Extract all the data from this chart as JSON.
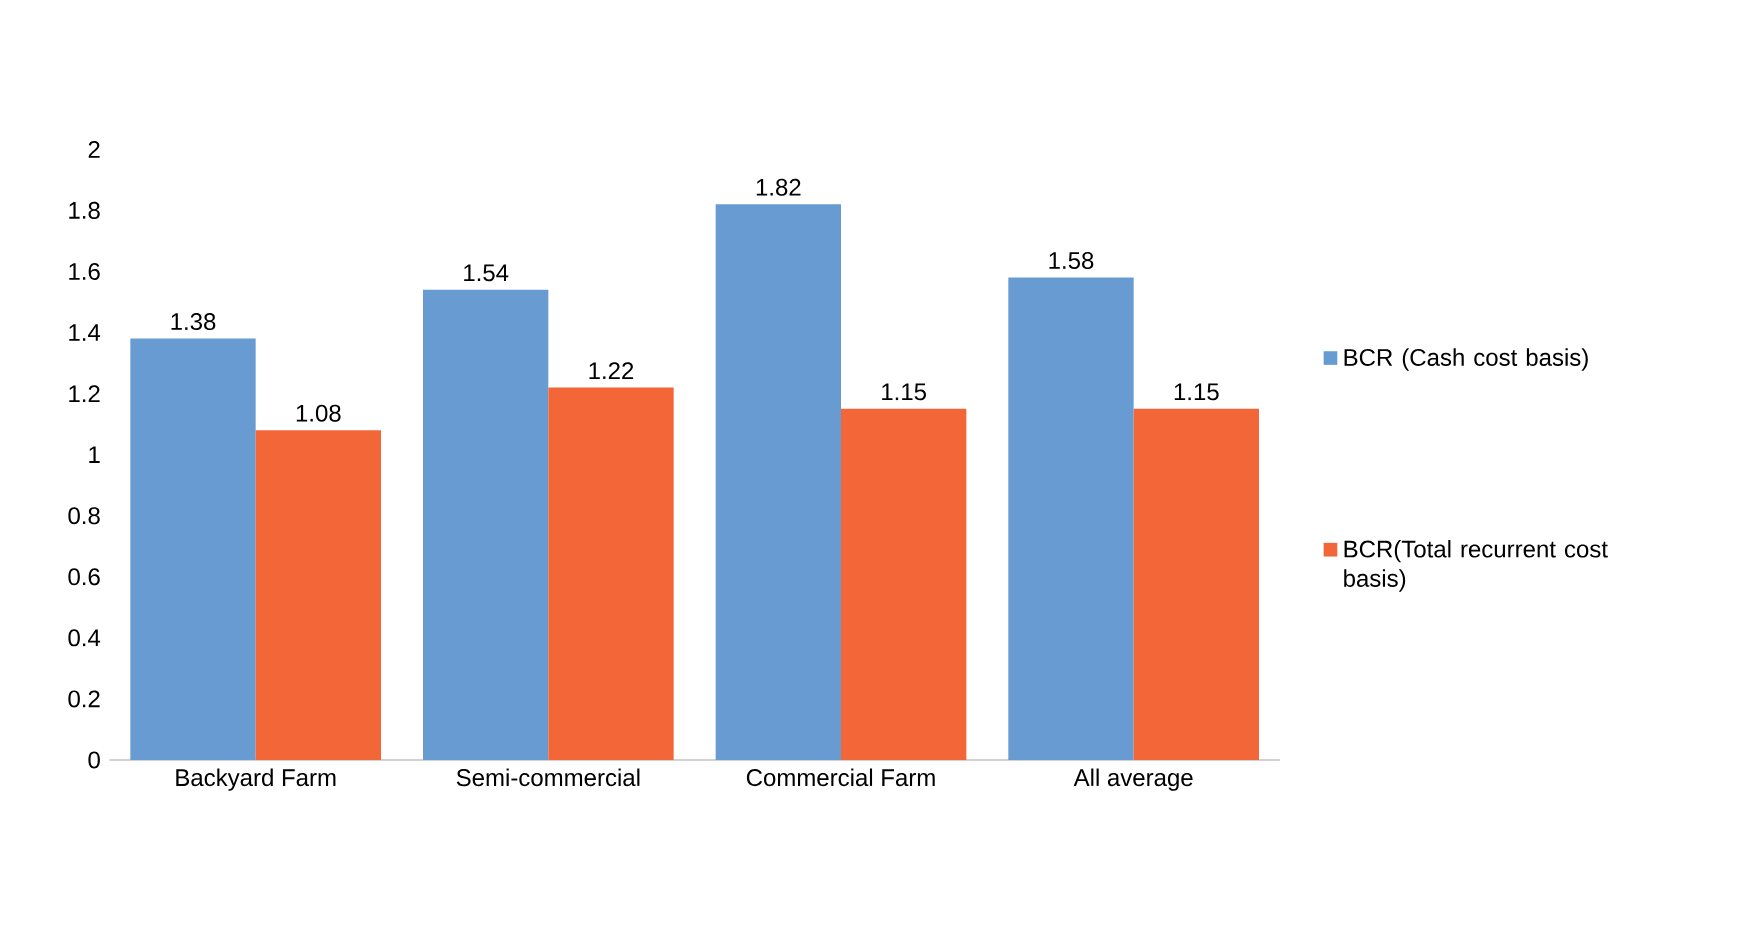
{
  "chart_data": {
    "type": "bar",
    "categories": [
      "Backyard Farm",
      "Semi-commercial",
      "Commercial Farm",
      "All average"
    ],
    "series": [
      {
        "name": "BCR (Cash cost basis)",
        "color": "#699bd3",
        "values": [
          1.38,
          1.54,
          1.82,
          1.58
        ]
      },
      {
        "name": "BCR(Total recurrent cost basis)",
        "color": "#f26638",
        "values": [
          1.08,
          1.22,
          1.15,
          1.15
        ]
      }
    ],
    "ylim": [
      0,
      2
    ],
    "yticks": [
      0,
      0.2,
      0.4,
      0.6,
      0.8,
      1,
      1.2,
      1.4,
      1.6,
      1.8,
      2
    ],
    "data_labels": true,
    "grid": false,
    "legend": "right"
  }
}
